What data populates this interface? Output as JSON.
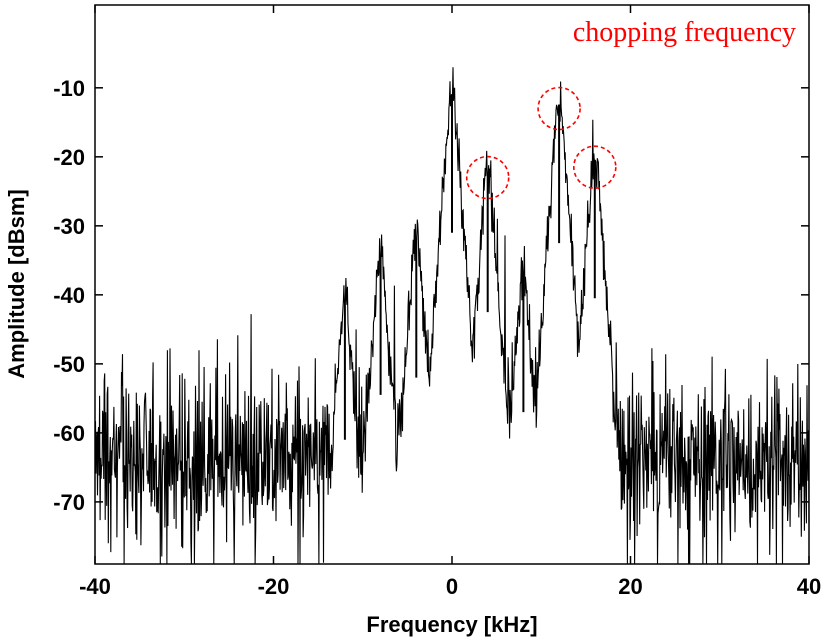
{
  "chart_data": {
    "type": "line",
    "title": "",
    "xlabel": "Frequency [kHz]",
    "ylabel": "Amplitude [dBsm]",
    "xlim": [
      -40,
      40
    ],
    "ylim": [
      -79,
      2
    ],
    "xticks": [
      -40,
      -20,
      0,
      20,
      40
    ],
    "xtick_labels": [
      "-40",
      "-20",
      "0",
      "20",
      "40"
    ],
    "yticks": [
      -10,
      -20,
      -30,
      -40,
      -50,
      -60,
      -70
    ],
    "ytick_labels": [
      "-10",
      "-20",
      "-30",
      "-40",
      "-50",
      "-60",
      "-70"
    ],
    "grid": false,
    "legend": "none",
    "line_color": "#000000",
    "noise_floor_dBsm": -64,
    "series": [
      {
        "peaks": [
          {
            "x": 0,
            "y": -11
          },
          {
            "x": 4,
            "y": -22.5
          },
          {
            "x": 12,
            "y": -12.5
          },
          {
            "x": 16,
            "y": -20.5
          },
          {
            "x": -4,
            "y": -32
          },
          {
            "x": -8,
            "y": -34.5
          },
          {
            "x": 8,
            "y": -37
          },
          {
            "x": -12,
            "y": -41
          }
        ]
      }
    ],
    "annotations": {
      "text": "chopping frequency",
      "color": "#ff0000",
      "circled_peaks": [
        {
          "x": 4,
          "y": -23
        },
        {
          "x": 12,
          "y": -13
        },
        {
          "x": 16,
          "y": -21.5
        }
      ]
    }
  }
}
